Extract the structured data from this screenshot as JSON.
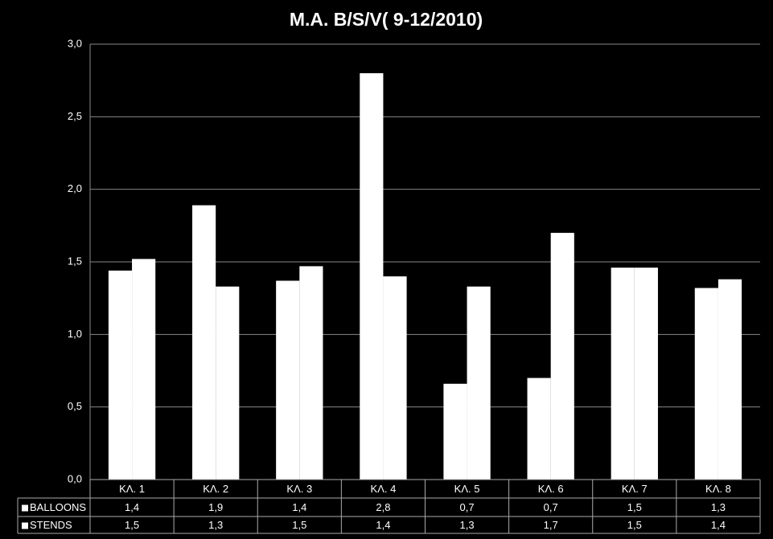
{
  "chart_data": {
    "type": "bar",
    "title": "M.A.  B/S/V( 9-12/2010)",
    "categories": [
      "ΚΛ. 1",
      "ΚΛ. 2",
      "ΚΛ. 3",
      "ΚΛ. 4",
      "ΚΛ. 5",
      "ΚΛ. 6",
      "ΚΛ. 7",
      "ΚΛ. 8"
    ],
    "series": [
      {
        "name": "BALLOONS",
        "color": "#ffffff",
        "values": [
          1.44,
          1.89,
          1.37,
          2.8,
          0.66,
          0.7,
          1.46,
          1.32
        ],
        "value_labels": [
          "1,4",
          "1,9",
          "1,4",
          "2,8",
          "0,7",
          "0,7",
          "1,5",
          "1,3"
        ]
      },
      {
        "name": "STENDS",
        "color": "#ffffff",
        "values": [
          1.52,
          1.33,
          1.47,
          1.4,
          1.33,
          1.7,
          1.46,
          1.38
        ],
        "value_labels": [
          "1,5",
          "1,3",
          "1,5",
          "1,4",
          "1,3",
          "1,7",
          "1,5",
          "1,4"
        ]
      }
    ],
    "ylim": [
      0,
      3
    ],
    "yticks": [
      {
        "value": 0,
        "label": "0,0"
      },
      {
        "value": 0.5,
        "label": "0,5"
      },
      {
        "value": 1,
        "label": "1,0"
      },
      {
        "value": 1.5,
        "label": "1,5"
      },
      {
        "value": 2,
        "label": "2,0"
      },
      {
        "value": 2.5,
        "label": "2,5"
      },
      {
        "value": 3,
        "label": "3,0"
      }
    ],
    "grid": true
  }
}
